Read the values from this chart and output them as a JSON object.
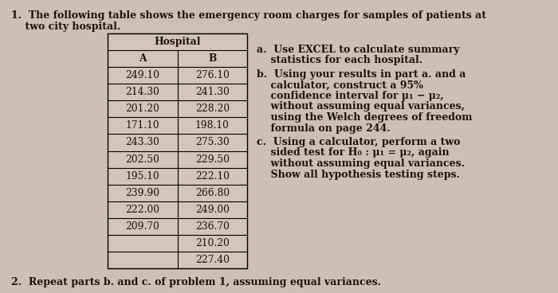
{
  "title_line1": "1.  The following table shows the emergency room charges for samples of patients at",
  "title_line2": "    two city hospital.",
  "table_header_top": "Hospital",
  "col_A_header": "A",
  "col_B_header": "B",
  "col_A": [
    "249.10",
    "214.30",
    "201.20",
    "171.10",
    "243.30",
    "202.50",
    "195.10",
    "239.90",
    "222.00",
    "209.70",
    "",
    ""
  ],
  "col_B": [
    "276.10",
    "241.30",
    "228.20",
    "198.10",
    "275.30",
    "229.50",
    "222.10",
    "266.80",
    "249.00",
    "236.70",
    "210.20",
    "227.40"
  ],
  "q_a_line1": "a.  Use EXCEL to calculate summary",
  "q_a_line2": "    statistics for each hospital.",
  "q_b_line1": "b.  Using your results in part a. and a",
  "q_b_line2": "    calculator, construct a 95%",
  "q_b_line3": "    confidence interval for μ₁ − μ₂,",
  "q_b_line4": "    without assuming equal variances,",
  "q_b_line5": "    using the Welch degrees of freedom",
  "q_b_line6": "    formula on page 244.",
  "q_c_line1": "c.  Using a calculator, perform a two",
  "q_c_line2": "    sided test for H₀ : μ₁ = μ₂, again",
  "q_c_line3": "    without assuming equal variances.",
  "q_c_line4": "    Show all hypothesis testing steps.",
  "footer": "2.  Repeat parts b. and c. of problem 1, assuming equal variances.",
  "bg_color": "#cebfb4",
  "text_color": "#1a1208",
  "font_size": 9.0,
  "font_size_table": 8.8
}
